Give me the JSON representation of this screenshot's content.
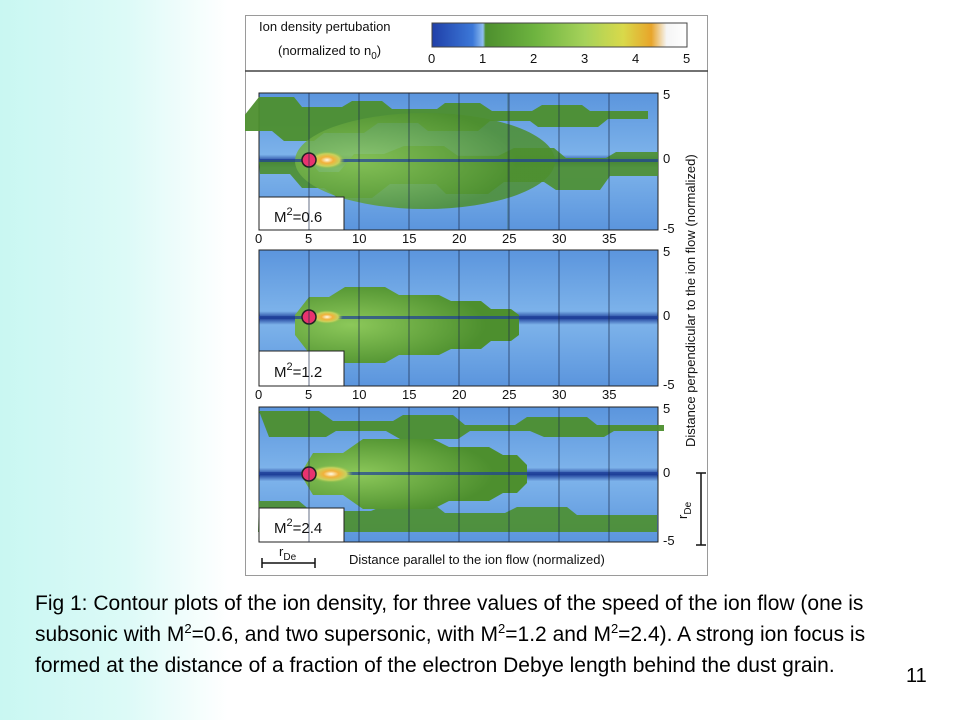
{
  "figure": {
    "colorbar": {
      "title_line1": "Ion density pertubation",
      "title_line2": "(normalized to n",
      "title_sub": "0",
      "title_end": ")",
      "ticks": [
        "0",
        "1",
        "2",
        "3",
        "4",
        "5"
      ],
      "colors": [
        "#1f3fa8",
        "#3c78d8",
        "#6fa8e6",
        "#4d8f2e",
        "#6db33f",
        "#a6d25a",
        "#d9d94a",
        "#e8a52a",
        "#f0f0f0"
      ]
    },
    "x_ticks": [
      "0",
      "5",
      "10",
      "15",
      "20",
      "25",
      "30",
      "35"
    ],
    "y_ticks": [
      "5",
      "0",
      "-5"
    ],
    "y_axis_label": "Distance perpendicular to the ion flow (normalized)",
    "x_axis_label": "Distance parallel to the ion flow (normalized)",
    "rde_label": "r",
    "rde_sub": "De",
    "panels": [
      {
        "m_label": "M",
        "m_sup": "2",
        "m_value": "=0.6"
      },
      {
        "m_label": "M",
        "m_sup": "2",
        "m_value": "=1.2"
      },
      {
        "m_label": "M",
        "m_sup": "2",
        "m_value": "=2.4"
      }
    ],
    "colors": {
      "background": "#6fa8e6",
      "plume": "#4d8f2e",
      "grain": "#e8336f",
      "focus": "#f0a030"
    }
  },
  "caption": {
    "part1": "Fig 1: Contour plots of the ion density, for three values of the speed of the ion flow (one is subsonic with M",
    "sup1": "2",
    "part2": "=0.6, and two supersonic, with M",
    "sup2": "2",
    "part3": "=1.2 and M",
    "sup3": "2",
    "part4": "=2.4). A strong ion focus is formed at the distance of a fraction of the electron Debye length behind the dust grain."
  },
  "page_number": "11"
}
